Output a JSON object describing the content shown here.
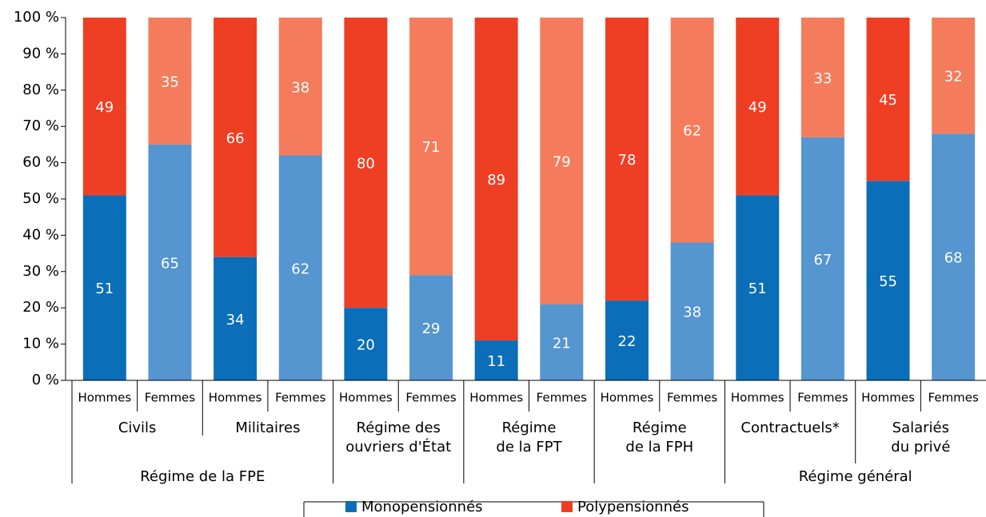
{
  "chart_data": {
    "type": "stacked_bar",
    "categories": [
      "Hommes",
      "Femmes",
      "Hommes",
      "Femmes",
      "Hommes",
      "Femmes",
      "Hommes",
      "Femmes",
      "Hommes",
      "Femmes",
      "Hommes",
      "Femmes",
      "Hommes",
      "Femmes"
    ],
    "groups": [
      "Civils",
      "Militaires",
      "Régime des\nouvriers d'État",
      "Régime\nde la FPT",
      "Régime\nde la FPH",
      "Contractuels*",
      "Salariés\ndu privé"
    ],
    "supergroups": [
      "Régime de la FPE",
      "Régime général"
    ],
    "series": [
      {
        "name": "Monopensionnés",
        "color": "#0a6eb8",
        "colors": [
          "#0a6eb8",
          "#5595d0",
          "#0a6eb8",
          "#5595d0",
          "#0a6eb8",
          "#5595d0",
          "#0a6eb8",
          "#5595d0",
          "#0a6eb8",
          "#5595d0",
          "#0a6eb8",
          "#5595d0",
          "#0a6eb8",
          "#5595d0"
        ],
        "values": [
          51,
          65,
          34,
          62,
          20,
          29,
          11,
          21,
          22,
          38,
          51,
          67,
          55,
          68
        ]
      },
      {
        "name": "Polypensionnés",
        "color": "#ee3f24",
        "colors": [
          "#ee3f24",
          "#f47c5c",
          "#ee3f24",
          "#f47c5c",
          "#ee3f24",
          "#f47c5c",
          "#ee3f24",
          "#f47c5c",
          "#ee3f24",
          "#f47c5c",
          "#ee3f24",
          "#f47c5c",
          "#ee3f24",
          "#f47c5c"
        ],
        "values": [
          49,
          35,
          66,
          38,
          80,
          71,
          89,
          79,
          78,
          62,
          49,
          33,
          45,
          32
        ]
      }
    ],
    "ylim": [
      0,
      100
    ],
    "yticks": [
      {
        "value": 0,
        "label": "0 %"
      },
      {
        "value": 10,
        "label": "10 %"
      },
      {
        "value": 20,
        "label": "20 %"
      },
      {
        "value": 30,
        "label": "30 %"
      },
      {
        "value": 40,
        "label": "40 %"
      },
      {
        "value": 50,
        "label": "50 %"
      },
      {
        "value": 60,
        "label": "60 %"
      },
      {
        "value": 70,
        "label": "70 %"
      },
      {
        "value": 80,
        "label": "80 %"
      },
      {
        "value": 90,
        "label": "90 %"
      },
      {
        "value": 100,
        "label": "100 %"
      }
    ],
    "grid": false,
    "legend": "bottom"
  }
}
